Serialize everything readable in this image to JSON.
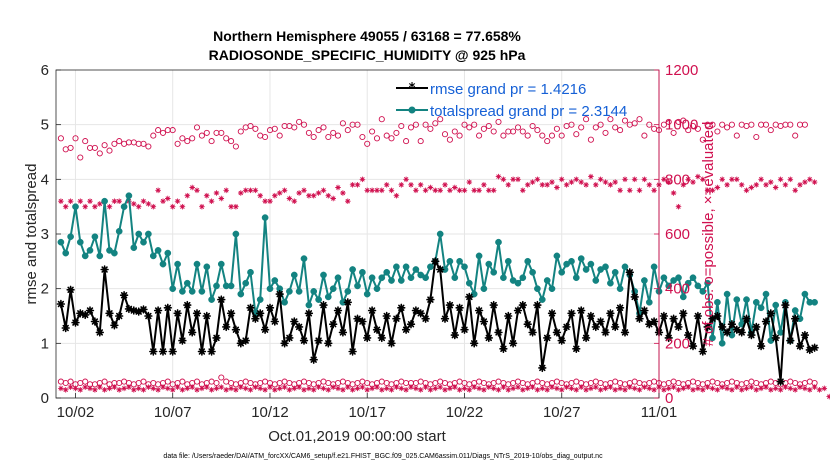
{
  "colors": {
    "rmse": "#000000",
    "spread": "#138381",
    "obs": "#d0104f",
    "legend_text": "#1560d6",
    "grid": "#e6e6e6"
  },
  "chart_data": {
    "type": "line",
    "title": "Northern Hemisphere 49055 / 63168 = 77.658%",
    "subtitle": "RADIOSONDE_SPECIFIC_HUMIDITY @ 925 hPa",
    "xlabel": "Oct.01,2019 00:00:00 start",
    "ylabel_left": "rmse and totalspread",
    "ylabel_right": "# of obs: o=possible, ×=evaluated",
    "xlim": [
      0.5,
      31.5
    ],
    "ylim_left": [
      0,
      6
    ],
    "ylim_right": [
      0,
      1200
    ],
    "x_ticks": [
      {
        "value": 1.5,
        "label": "10/02"
      },
      {
        "value": 6.5,
        "label": "10/07"
      },
      {
        "value": 11.5,
        "label": "10/12"
      },
      {
        "value": 16.5,
        "label": "10/17"
      },
      {
        "value": 21.5,
        "label": "10/22"
      },
      {
        "value": 26.5,
        "label": "10/27"
      },
      {
        "value": 31.5,
        "label": "11/01"
      }
    ],
    "y_ticks_left": [
      0,
      1,
      2,
      3,
      4,
      5,
      6
    ],
    "y_ticks_right": [
      0,
      200,
      400,
      600,
      800,
      1000,
      1200
    ],
    "grid": true,
    "legend": {
      "placement": "top-right",
      "entries": [
        "rmse grand pr = 1.4216",
        "totalspread grand pr = 2.3144"
      ]
    },
    "footnote": "data file: /Users/raeder/DAI/ATM_forcXX/CAM6_setup/f.e21.FHIST_BGC.f09_025.CAM6assim.011/Diags_NTrS_2019-10/obs_diag_output.nc",
    "x_start": 0.75,
    "x_step": 0.25,
    "series": [
      {
        "name": "rmse",
        "axis": "left",
        "values": [
          1.72,
          1.28,
          1.98,
          1.38,
          1.55,
          1.52,
          1.6,
          1.4,
          1.2,
          2.35,
          1.55,
          1.33,
          1.5,
          1.88,
          1.63,
          1.6,
          1.58,
          1.62,
          1.5,
          0.85,
          1.6,
          0.85,
          1.65,
          0.85,
          1.55,
          1.05,
          1.7,
          1.2,
          1.55,
          0.85,
          1.5,
          0.85,
          1.1,
          1.8,
          1.3,
          1.55,
          1.25,
          1.0,
          1.05,
          1.65,
          1.45,
          1.55,
          1.25,
          1.65,
          1.4,
          1.9,
          1.0,
          1.1,
          1.4,
          1.3,
          1.05,
          1.55,
          0.7,
          1.05,
          1.7,
          1.0,
          1.35,
          1.6,
          1.2,
          1.75,
          0.85,
          1.45,
          1.4,
          1.1,
          1.6,
          1.25,
          1.1,
          1.5,
          1.0,
          1.45,
          1.65,
          1.25,
          1.35,
          1.6,
          1.55,
          1.45,
          1.8,
          2.5,
          2.35,
          1.45,
          1.7,
          1.15,
          1.65,
          1.25,
          1.85,
          1.0,
          1.6,
          1.4,
          1.1,
          1.7,
          1.2,
          0.9,
          1.5,
          1.0,
          1.6,
          1.7,
          1.35,
          1.2,
          1.7,
          0.55,
          1.1,
          1.55,
          1.2,
          1.05,
          1.3,
          1.55,
          0.9,
          1.6,
          1.1,
          1.5,
          1.3,
          1.4,
          1.2,
          1.55,
          1.3,
          1.65,
          1.2,
          2.3,
          1.85,
          1.45,
          1.6,
          1.35,
          1.4,
          1.2,
          1.5,
          1.1,
          1.45,
          1.3,
          1.55,
          1.15,
          0.95,
          1.5,
          0.85,
          1.3,
          1.45,
          1.5,
          1.3,
          1.2,
          1.35,
          1.25,
          1.2,
          1.45,
          1.15,
          1.3,
          0.95,
          1.4,
          1.55,
          1.1,
          0.3,
          1.7,
          1.05,
          1.45,
          0.95,
          1.15,
          0.88,
          0.92
        ]
      },
      {
        "name": "totalspread",
        "axis": "left",
        "values": [
          2.85,
          2.65,
          2.95,
          3.5,
          2.85,
          2.6,
          2.7,
          2.95,
          2.6,
          3.6,
          2.7,
          2.65,
          3.05,
          3.5,
          3.7,
          2.75,
          3.0,
          2.85,
          3.0,
          2.6,
          2.7,
          2.45,
          2.65,
          2.0,
          2.45,
          1.95,
          2.1,
          1.95,
          2.45,
          1.95,
          2.4,
          1.8,
          2.05,
          2.45,
          2.05,
          2.05,
          3.0,
          1.9,
          2.1,
          2.3,
          1.55,
          1.8,
          3.3,
          2.0,
          2.15,
          2.0,
          1.75,
          1.95,
          2.25,
          1.95,
          2.55,
          1.7,
          1.95,
          1.8,
          2.25,
          1.85,
          2.0,
          2.2,
          1.75,
          1.95,
          2.35,
          2.05,
          2.3,
          1.9,
          2.2,
          2.0,
          2.2,
          2.3,
          2.15,
          2.4,
          2.15,
          2.4,
          2.2,
          2.35,
          2.25,
          2.2,
          2.4,
          2.5,
          3.0,
          2.35,
          2.5,
          2.2,
          2.5,
          2.4,
          2.1,
          1.9,
          2.6,
          2.0,
          2.45,
          2.3,
          2.85,
          2.2,
          2.5,
          2.15,
          2.1,
          2.2,
          2.5,
          2.3,
          2.0,
          1.8,
          2.15,
          2.0,
          2.6,
          2.3,
          2.45,
          2.5,
          2.2,
          2.55,
          2.35,
          2.45,
          2.15,
          2.35,
          2.4,
          2.1,
          2.3,
          2.0,
          2.4,
          2.25,
          1.95,
          1.55,
          2.15,
          1.75,
          2.4,
          1.95,
          2.2,
          2.05,
          2.15,
          2.2,
          1.85,
          2.1,
          2.2,
          2.05,
          1.95,
          2.1,
          1.1,
          1.75,
          1.0,
          1.9,
          1.15,
          1.8,
          1.35,
          1.8,
          1.2,
          1.75,
          1.65,
          1.9,
          1.05,
          1.7,
          1.2,
          1.75,
          1.05,
          1.6,
          1.45,
          1.9,
          1.75,
          1.75
        ]
      },
      {
        "name": "obs possible",
        "axis": "right",
        "marker": "circle",
        "values": [
          950,
          910,
          915,
          950,
          880,
          940,
          915,
          915,
          895,
          925,
          905,
          930,
          940,
          930,
          935,
          935,
          930,
          930,
          920,
          960,
          980,
          970,
          980,
          980,
          930,
          950,
          940,
          950,
          990,
          960,
          970,
          940,
          970,
          970,
          950,
          940,
          920,
          975,
          990,
          995,
          985,
          960,
          955,
          980,
          985,
          960,
          995,
          995,
          990,
          1010,
          1000,
          970,
          955,
          980,
          990,
          955,
          970,
          960,
          1005,
          980,
          1000,
          1000,
          955,
          930,
          975,
          950,
          1020,
          960,
          950,
          970,
          995,
          940,
          990,
          1000,
          940,
          1000,
          985,
          1005,
          1020,
          965,
          945,
          975,
          960,
          1000,
          990,
          1000,
          960,
          985,
          995,
          975,
          1010,
          960,
          975,
          975,
          990,
          975,
          960,
          995,
          980,
          960,
          940,
          960,
          985,
          960,
          995,
          1000,
          965,
          990,
          1020,
          945,
          990,
          1000,
          970,
          1020,
          990,
          980,
          1015,
          1000,
          1005,
          1020,
          960,
          1000,
          985,
          980,
          1000,
          1010,
          970,
          1010,
          1015,
          980,
          995,
          985,
          945,
          1000,
          1000,
          975,
          1000,
          990,
          1000,
          960,
          1000,
          995,
          1000,
          955,
          1000,
          1000,
          980,
          1000,
          995,
          1000,
          1000,
          960,
          1000,
          1000
        ]
      },
      {
        "name": "obs evaluated",
        "axis": "right",
        "marker": "asterisk",
        "values": [
          720,
          700,
          720,
          700,
          720,
          700,
          720,
          700,
          710,
          720,
          700,
          720,
          720,
          700,
          720,
          710,
          700,
          720,
          710,
          700,
          760,
          720,
          730,
          700,
          720,
          700,
          740,
          770,
          760,
          700,
          740,
          720,
          750,
          730,
          760,
          700,
          700,
          750,
          760,
          760,
          760,
          740,
          720,
          720,
          740,
          750,
          760,
          730,
          720,
          750,
          760,
          740,
          740,
          750,
          760,
          740,
          730,
          770,
          750,
          720,
          780,
          780,
          800,
          760,
          760,
          760,
          760,
          780,
          760,
          740,
          780,
          800,
          780,
          760,
          780,
          760,
          770,
          760,
          760,
          780,
          760,
          770,
          760,
          760,
          790,
          760,
          760,
          780,
          760,
          760,
          810,
          800,
          780,
          800,
          800,
          760,
          780,
          790,
          800,
          780,
          780,
          790,
          770,
          800,
          780,
          790,
          800,
          790,
          780,
          810,
          780,
          800,
          790,
          780,
          790,
          760,
          800,
          760,
          800,
          760,
          800,
          780,
          760,
          780,
          800,
          790,
          750,
          700,
          780,
          800,
          790,
          810,
          800,
          760,
          760,
          770,
          800,
          780,
          800,
          800,
          780,
          760,
          770,
          780,
          800,
          780,
          790,
          770,
          800,
          780,
          800,
          760,
          780,
          790,
          800,
          790
        ]
      },
      {
        "name": "obs possible low",
        "axis": "right",
        "marker": "circle",
        "values": [
          60,
          55,
          60,
          50,
          55,
          60,
          50,
          50,
          55,
          60,
          50,
          55,
          55,
          60,
          55,
          50,
          55,
          60,
          50,
          55,
          50,
          55,
          60,
          50,
          55,
          60,
          50,
          55,
          60,
          50,
          55,
          60,
          55,
          75,
          60,
          55,
          50,
          55,
          60,
          55,
          50,
          55,
          60,
          55,
          50,
          55,
          60,
          55,
          50,
          55,
          60,
          55,
          50,
          55,
          60,
          55,
          50,
          55,
          60,
          55,
          50,
          55,
          60,
          55,
          50,
          55,
          60,
          55,
          50,
          55,
          60,
          55,
          55,
          55,
          60,
          55,
          50,
          55,
          60,
          55,
          50,
          55,
          60,
          55,
          50,
          55,
          60,
          55,
          50,
          55,
          60,
          55,
          50,
          55,
          60,
          55,
          50,
          55,
          60,
          55,
          50,
          55,
          60,
          55,
          50,
          55,
          60,
          55,
          50,
          55,
          60,
          55,
          50,
          55,
          60,
          55,
          50,
          55,
          60,
          55,
          50,
          55,
          60,
          55,
          50,
          55,
          60,
          55,
          50,
          55,
          60,
          55,
          50,
          55,
          60,
          55,
          50,
          55,
          60,
          55,
          50,
          55,
          60,
          55,
          50,
          55,
          60,
          55,
          50,
          55,
          60,
          55,
          50,
          55,
          60,
          55
        ]
      },
      {
        "name": "obs evaluated low",
        "axis": "right",
        "marker": "asterisk",
        "values": [
          35,
          30,
          40,
          35,
          30,
          40,
          35,
          30,
          40,
          30,
          35,
          40,
          30,
          35,
          40,
          30,
          35,
          30,
          40,
          35,
          30,
          40,
          35,
          30,
          40,
          30,
          35,
          40,
          30,
          35,
          40,
          30,
          35,
          40,
          30,
          35,
          30,
          40,
          35,
          30,
          40,
          35,
          30,
          40,
          30,
          35,
          40,
          30,
          35,
          40,
          30,
          35,
          30,
          40,
          35,
          30,
          40,
          35,
          30,
          40,
          30,
          35,
          40,
          30,
          35,
          40,
          30,
          35,
          30,
          40,
          35,
          30,
          40,
          35,
          30,
          40,
          30,
          35,
          40,
          30,
          35,
          40,
          30,
          35,
          30,
          40,
          35,
          30,
          40,
          35,
          30,
          40,
          30,
          35,
          40,
          30,
          35,
          40,
          30,
          35,
          30,
          40,
          35,
          30,
          40,
          35,
          30,
          40,
          30,
          35,
          40,
          30,
          35,
          40,
          30,
          35,
          30,
          40,
          35,
          30,
          40,
          35,
          30,
          40,
          30,
          35,
          40,
          30,
          35,
          40,
          30,
          35,
          30,
          40,
          35,
          30,
          40,
          35,
          30,
          40,
          30,
          35,
          40,
          30,
          35,
          40,
          30,
          35,
          30,
          40,
          35,
          30,
          40,
          35,
          30,
          40,
          30,
          35,
          5
        ]
      }
    ]
  }
}
